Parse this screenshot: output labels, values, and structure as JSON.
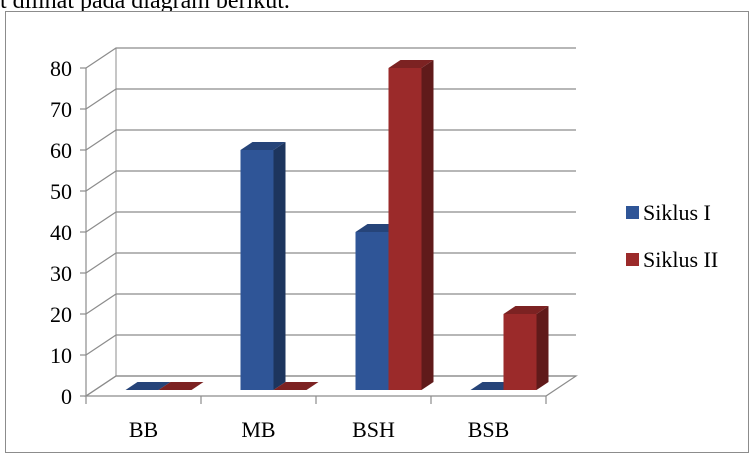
{
  "caption": "t dilihat pada diagram berikut.",
  "chart_data": {
    "type": "bar",
    "categories": [
      "BB",
      "MB",
      "BSH",
      "BSB"
    ],
    "series": [
      {
        "name": "Siklus I",
        "values": [
          0,
          60,
          40,
          0
        ],
        "color": "#2F5597"
      },
      {
        "name": "Siklus II",
        "values": [
          0,
          0,
          80,
          20
        ],
        "color": "#9B2A2A"
      }
    ],
    "ylim": [
      0,
      80
    ],
    "yticks": [
      0,
      10,
      20,
      30,
      40,
      50,
      60,
      70,
      80
    ],
    "grid": true,
    "legend_position": "right",
    "style": "3d-clustered-column"
  }
}
